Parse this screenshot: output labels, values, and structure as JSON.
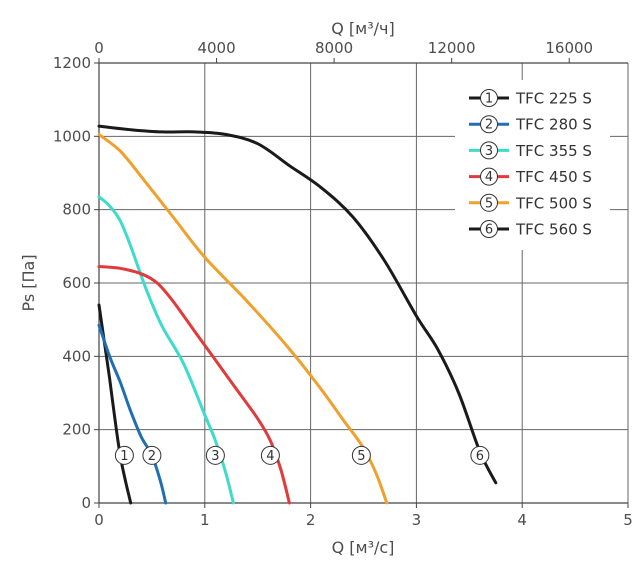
{
  "chart_data": {
    "type": "line",
    "xlabel": "Q [м³/с]",
    "x2label": "Q [м³/ч]",
    "ylabel": "Ps [Па]",
    "xlim": [
      0,
      5
    ],
    "x2lim": [
      0,
      18000
    ],
    "ylim": [
      0,
      1200
    ],
    "x_ticks": [
      "0",
      "1",
      "2",
      "3",
      "4",
      "5"
    ],
    "x2_ticks": [
      "0",
      "4000",
      "8000",
      "12000",
      "16000"
    ],
    "y_ticks": [
      "0",
      "200",
      "400",
      "600",
      "800",
      "1000",
      "1200"
    ],
    "grid": true,
    "legend_position": "top-right",
    "series": [
      {
        "name": "TFC 225 S",
        "marker": "1",
        "color": "#1a1a1a",
        "x": [
          0.0,
          0.05,
          0.1,
          0.15,
          0.2,
          0.25,
          0.3
        ],
        "y": [
          540,
          440,
          340,
          230,
          130,
          60,
          0
        ],
        "label_at": [
          0.24,
          130
        ]
      },
      {
        "name": "TFC 280 S",
        "marker": "2",
        "color": "#1f6fb2",
        "x": [
          0.0,
          0.1,
          0.2,
          0.3,
          0.4,
          0.5,
          0.58,
          0.63
        ],
        "y": [
          485,
          400,
          330,
          250,
          180,
          130,
          60,
          0
        ],
        "label_at": [
          0.5,
          130
        ]
      },
      {
        "name": "TFC 355 S",
        "marker": "3",
        "color": "#3ddbcb",
        "x": [
          0.0,
          0.1,
          0.2,
          0.3,
          0.45,
          0.6,
          0.8,
          1.0,
          1.1,
          1.2,
          1.27
        ],
        "y": [
          835,
          810,
          770,
          700,
          580,
          480,
          380,
          240,
          170,
          80,
          0
        ],
        "label_at": [
          1.1,
          130
        ]
      },
      {
        "name": "TFC 450 S",
        "marker": "4",
        "color": "#e03a3a",
        "x": [
          0.0,
          0.2,
          0.4,
          0.55,
          0.7,
          0.9,
          1.1,
          1.3,
          1.5,
          1.62,
          1.72,
          1.8
        ],
        "y": [
          645,
          640,
          625,
          600,
          550,
          470,
          390,
          310,
          230,
          170,
          90,
          0
        ],
        "label_at": [
          1.62,
          130
        ]
      },
      {
        "name": "TFC 500 S",
        "marker": "5",
        "color": "#f0a02c",
        "x": [
          0.0,
          0.2,
          0.4,
          0.7,
          1.0,
          1.4,
          1.8,
          2.1,
          2.3,
          2.5,
          2.62,
          2.72
        ],
        "y": [
          1005,
          960,
          890,
          780,
          670,
          550,
          420,
          310,
          230,
          150,
          80,
          0
        ],
        "label_at": [
          2.48,
          130
        ]
      },
      {
        "name": "TFC 560 S",
        "marker": "6",
        "color": "#1a1a1a",
        "x": [
          0.0,
          0.3,
          0.6,
          0.9,
          1.2,
          1.5,
          1.8,
          2.1,
          2.4,
          2.7,
          3.0,
          3.2,
          3.4,
          3.6,
          3.75
        ],
        "y": [
          1028,
          1018,
          1012,
          1012,
          1005,
          980,
          920,
          860,
          780,
          660,
          510,
          420,
          300,
          140,
          55
        ],
        "label_at": [
          3.6,
          130
        ]
      }
    ]
  }
}
